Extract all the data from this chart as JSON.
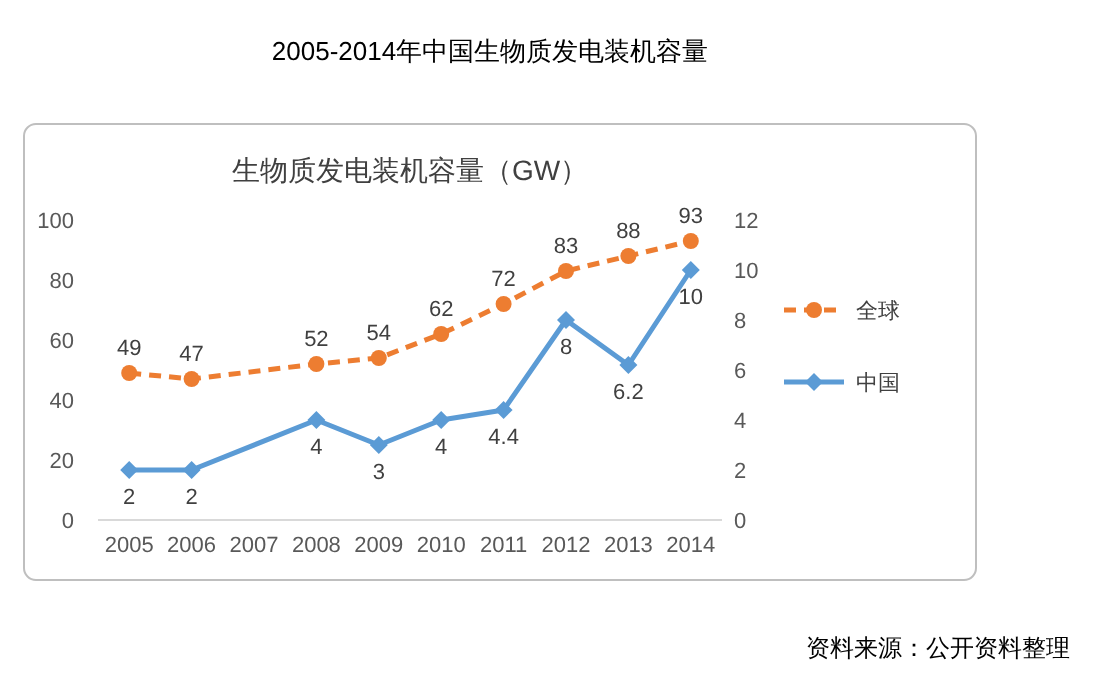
{
  "chart_data": {
    "type": "line",
    "title": "2005-2014年中国生物质发电装机容量",
    "subtitle": "生物质发电装机容量（GW）",
    "categories": [
      "2005",
      "2006",
      "2007",
      "2008",
      "2009",
      "2010",
      "2011",
      "2012",
      "2013",
      "2014"
    ],
    "series": [
      {
        "name": "全球",
        "color": "#ed7d31",
        "marker": "circle",
        "line_style": "dashed",
        "values": [
          49,
          47,
          null,
          52,
          54,
          62,
          72,
          83,
          88,
          93
        ]
      },
      {
        "name": "中国",
        "color": "#5b9bd5",
        "marker": "diamond",
        "line_style": "solid",
        "axis": "y2",
        "values": [
          2,
          2,
          null,
          4,
          3,
          4,
          4.4,
          8,
          6.2,
          10
        ]
      }
    ],
    "ylim": [
      0,
      100
    ],
    "yticks": [
      0,
      20,
      40,
      60,
      80,
      100
    ],
    "y2lim": [
      0,
      12
    ],
    "y2ticks": [
      0,
      2,
      4,
      6,
      8,
      10,
      12
    ],
    "data_labels": true,
    "legend": "right",
    "grid": false,
    "annotations": [
      "资料来源：公开资料整理"
    ]
  }
}
